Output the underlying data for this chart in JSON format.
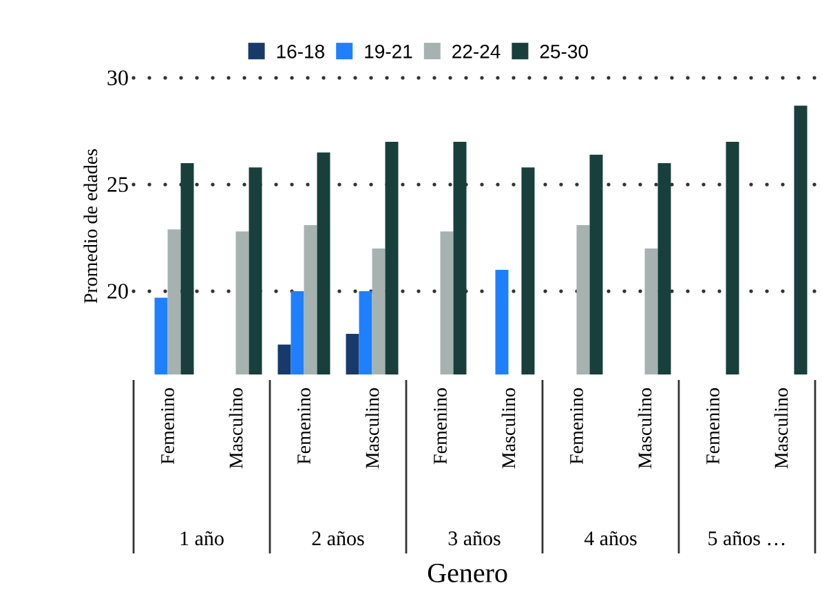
{
  "chart_data": {
    "type": "bar",
    "xlabel": "Genero",
    "ylabel": "Promedio de edades",
    "categories": [
      "Femenino",
      "Masculino",
      "Femenino",
      "Masculino",
      "Femenino",
      "Masculino",
      "Femenino",
      "Masculino",
      "Femenino",
      "Masculino"
    ],
    "annotations": [
      "1 año",
      "2 años",
      "3 años",
      "4 años",
      "5 años …"
    ],
    "series": [
      {
        "name": "16-18",
        "color": "#173a6b",
        "values": [
          null,
          null,
          17.5,
          18.0,
          null,
          null,
          null,
          null,
          null,
          null
        ]
      },
      {
        "name": "19-21",
        "color": "#1f80ff",
        "values": [
          19.7,
          null,
          20.0,
          20.0,
          null,
          21.0,
          null,
          null,
          null,
          null
        ]
      },
      {
        "name": "22-24",
        "color": "#a6b2b0",
        "values": [
          22.9,
          22.8,
          23.1,
          22.0,
          22.8,
          null,
          23.1,
          22.0,
          null,
          null
        ]
      },
      {
        "name": "25-30",
        "color": "#183f3b",
        "values": [
          26.0,
          25.8,
          26.5,
          27.0,
          27.0,
          25.8,
          26.4,
          26.0,
          27.0,
          28.7
        ]
      }
    ],
    "ylim": [
      16.1,
      30
    ],
    "yticks": [
      20,
      25,
      30
    ],
    "grid": "y",
    "legend": "top"
  }
}
